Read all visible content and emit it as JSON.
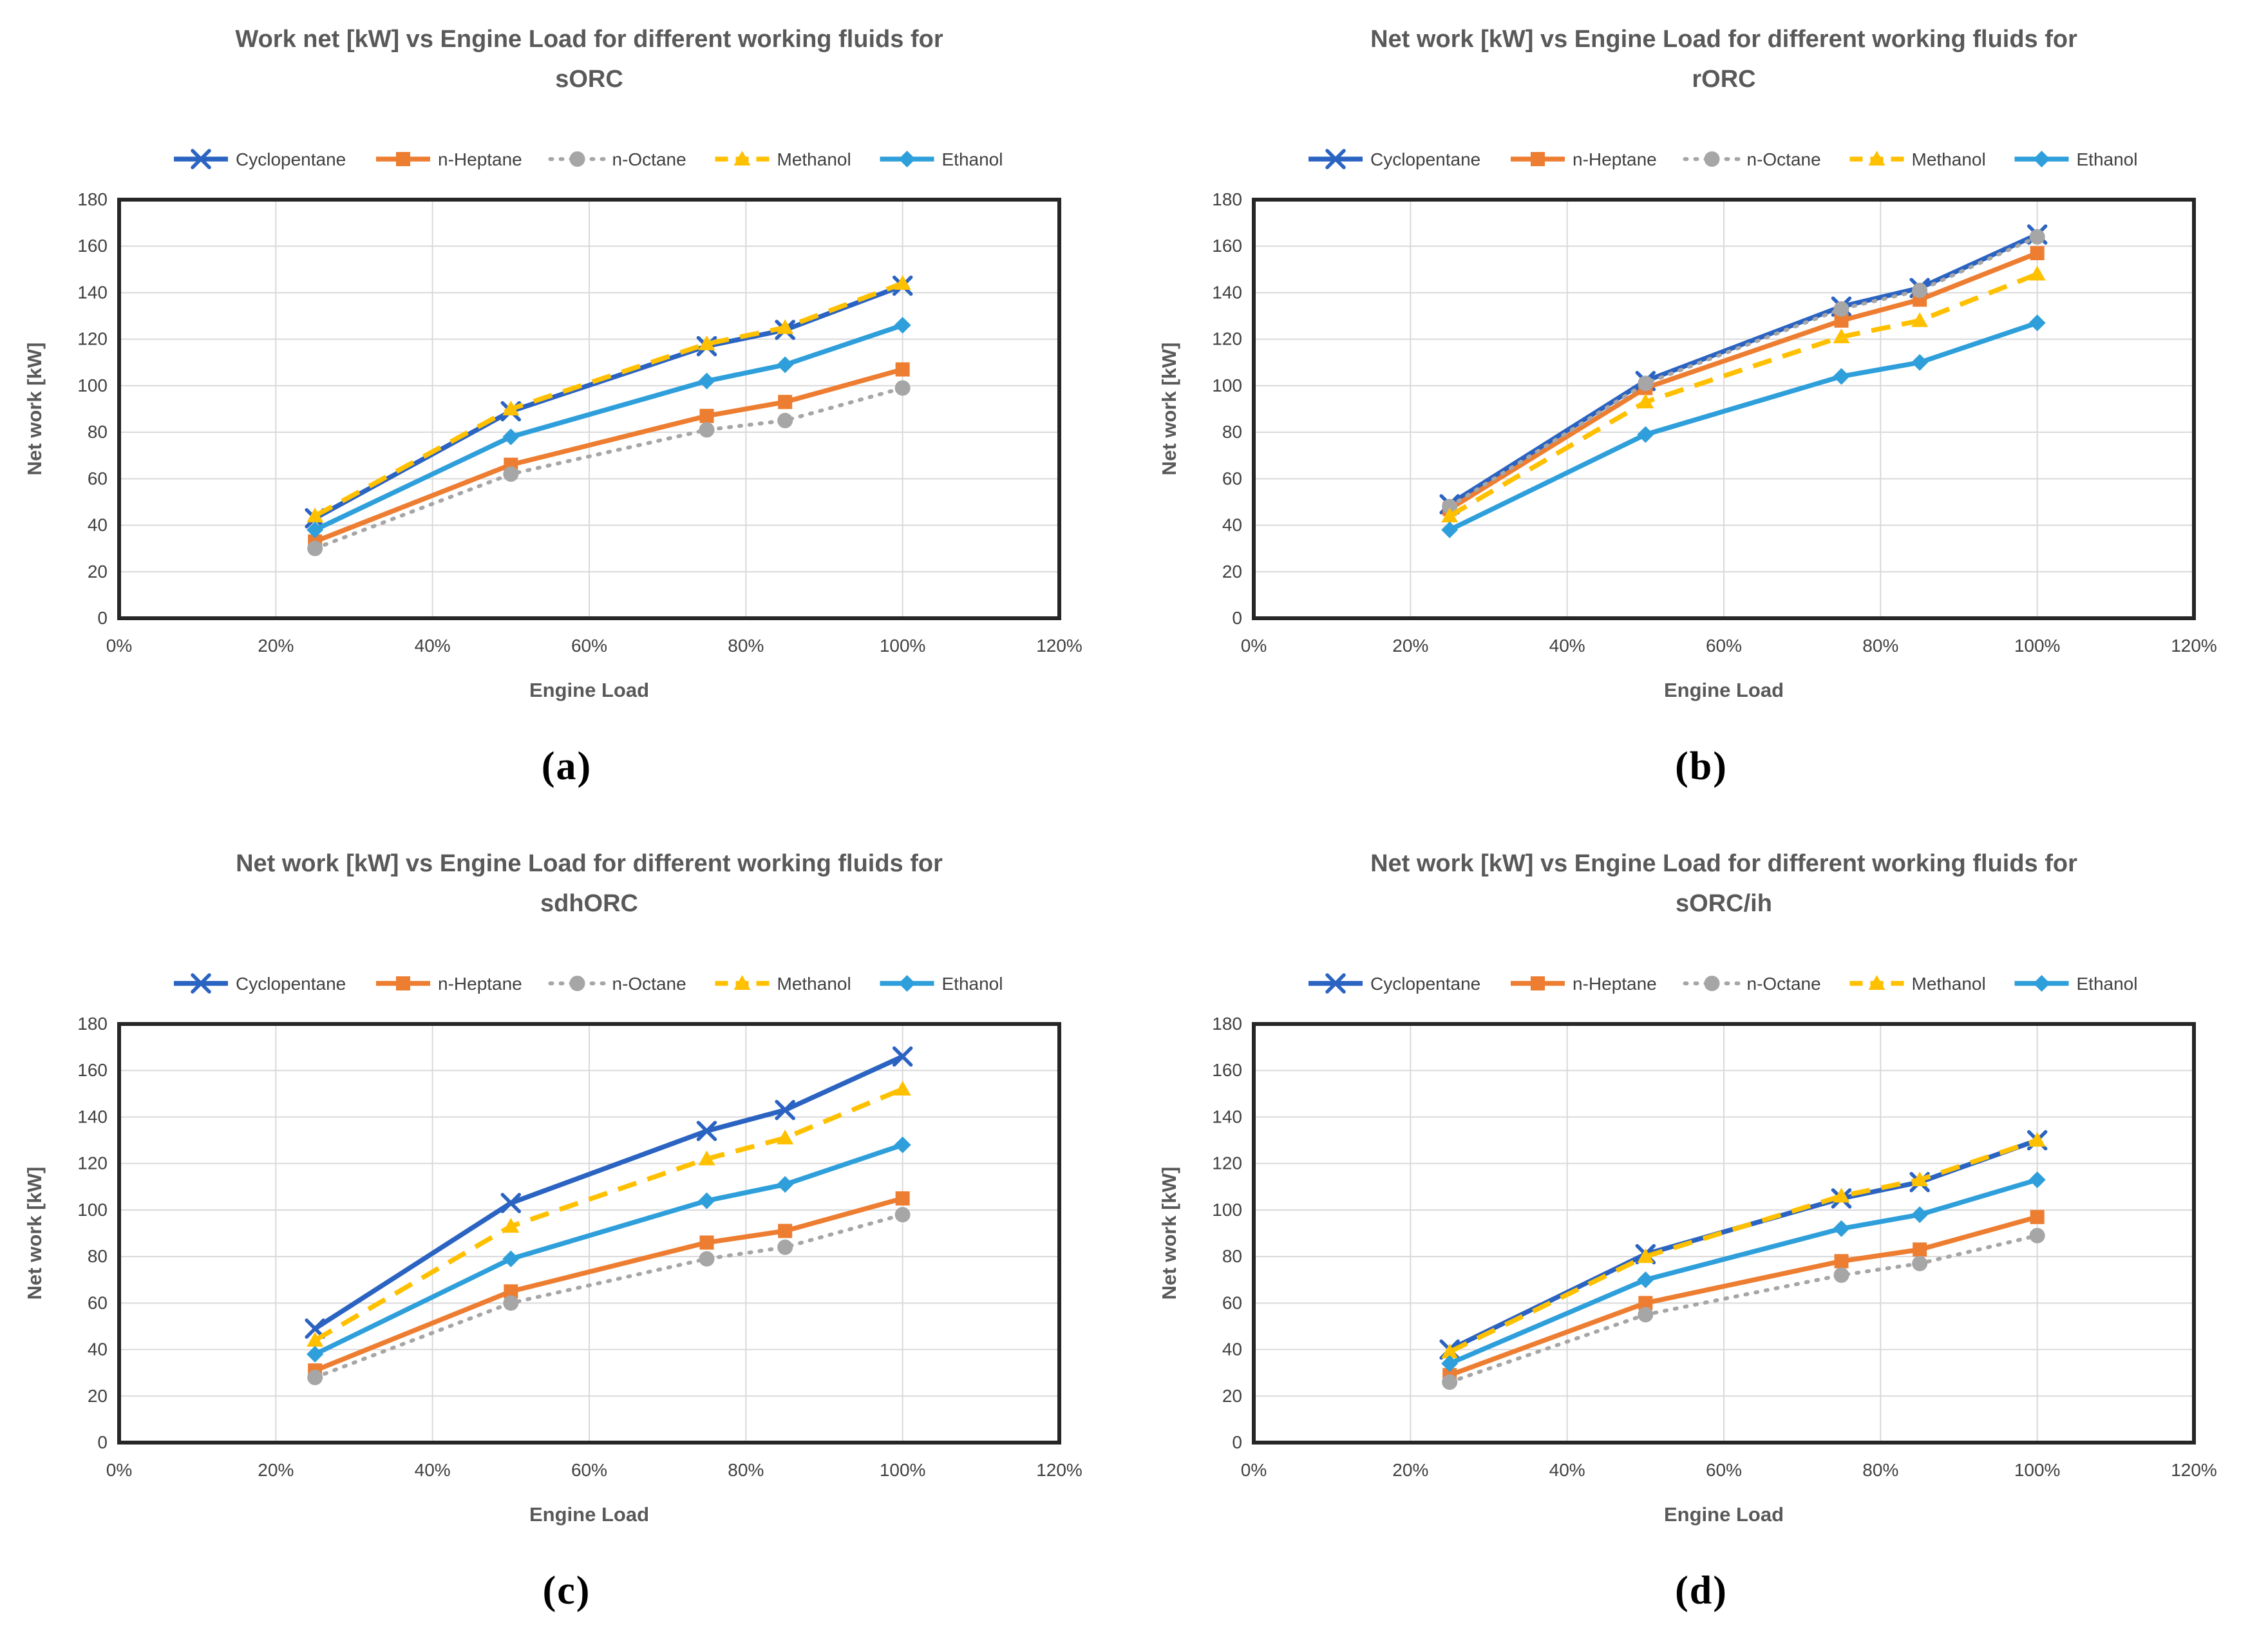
{
  "figure": {
    "background": "#ffffff",
    "grid_color": "#d9d9d9",
    "border_color": "#262626",
    "title_color": "#595959",
    "tick_color": "#404040"
  },
  "chart_data": [
    {
      "type": "line",
      "panel_label": "(a)",
      "title_lines": [
        "Work net [kW] vs Engine Load for different working fluids for",
        "sORC"
      ],
      "title": "Work net [kW] vs Engine Load for different working fluids for sORC",
      "xlabel": "Engine Load",
      "ylabel": "Net work [kW]",
      "x_percent": [
        25,
        50,
        75,
        85,
        100
      ],
      "xlim": [
        0,
        120
      ],
      "xticks": [
        "0%",
        "20%",
        "40%",
        "60%",
        "80%",
        "100%",
        "120%"
      ],
      "xtick_percent": [
        0,
        20,
        40,
        60,
        80,
        100,
        120
      ],
      "ylim": [
        0,
        180
      ],
      "ytick_step": 20,
      "grid": true,
      "legend_position": "top",
      "series": [
        {
          "name": "Cyclopentane",
          "color": "#2A63C1",
          "line": "solid",
          "marker": "x",
          "values": [
            43,
            89,
            117,
            124,
            143
          ]
        },
        {
          "name": "n-Heptane",
          "color": "#ED7D31",
          "line": "solid",
          "marker": "square",
          "values": [
            33,
            66,
            87,
            93,
            107
          ]
        },
        {
          "name": "n-Octane",
          "color": "#A6A6A6",
          "line": "dotted",
          "marker": "circle",
          "values": [
            30,
            62,
            81,
            85,
            99
          ]
        },
        {
          "name": "Methanol",
          "color": "#FFC000",
          "line": "dashed",
          "marker": "triangle",
          "values": [
            44,
            90,
            118,
            125,
            144
          ]
        },
        {
          "name": "Ethanol",
          "color": "#2E9FDA",
          "line": "solid",
          "marker": "diamond",
          "values": [
            38,
            78,
            102,
            109,
            126
          ]
        }
      ]
    },
    {
      "type": "line",
      "panel_label": "(b)",
      "title_lines": [
        "Net work [kW] vs Engine Load for different working fluids for",
        "rORC"
      ],
      "title": "Net work [kW] vs Engine Load for different working fluids for rORC",
      "xlabel": "Engine Load",
      "ylabel": "Net work [kW]",
      "x_percent": [
        25,
        50,
        75,
        85,
        100
      ],
      "xlim": [
        0,
        120
      ],
      "xticks": [
        "0%",
        "20%",
        "40%",
        "60%",
        "80%",
        "100%",
        "120%"
      ],
      "xtick_percent": [
        0,
        20,
        40,
        60,
        80,
        100,
        120
      ],
      "ylim": [
        0,
        180
      ],
      "ytick_step": 20,
      "grid": true,
      "legend_position": "top",
      "series": [
        {
          "name": "Cyclopentane",
          "color": "#2A63C1",
          "line": "solid",
          "marker": "x",
          "values": [
            49,
            102,
            134,
            142,
            165
          ]
        },
        {
          "name": "n-Heptane",
          "color": "#ED7D31",
          "line": "solid",
          "marker": "square",
          "values": [
            47,
            99,
            128,
            137,
            157
          ]
        },
        {
          "name": "n-Octane",
          "color": "#A6A6A6",
          "line": "dotted",
          "marker": "circle",
          "values": [
            48,
            101,
            133,
            141,
            164
          ]
        },
        {
          "name": "Methanol",
          "color": "#FFC000",
          "line": "dashed",
          "marker": "triangle",
          "values": [
            44,
            93,
            121,
            128,
            148
          ]
        },
        {
          "name": "Ethanol",
          "color": "#2E9FDA",
          "line": "solid",
          "marker": "diamond",
          "values": [
            38,
            79,
            104,
            110,
            127
          ]
        }
      ]
    },
    {
      "type": "line",
      "panel_label": "(c)",
      "title_lines": [
        "Net work [kW] vs Engine Load for different working fluids for",
        "sdhORC"
      ],
      "title": "Net work [kW] vs Engine Load for different working fluids for sdhORC",
      "xlabel": "Engine Load",
      "ylabel": "Net work [kW]",
      "x_percent": [
        25,
        50,
        75,
        85,
        100
      ],
      "xlim": [
        0,
        120
      ],
      "xticks": [
        "0%",
        "20%",
        "40%",
        "60%",
        "80%",
        "100%",
        "120%"
      ],
      "xtick_percent": [
        0,
        20,
        40,
        60,
        80,
        100,
        120
      ],
      "ylim": [
        0,
        180
      ],
      "ytick_step": 20,
      "grid": true,
      "legend_position": "top",
      "series": [
        {
          "name": "Cyclopentane",
          "color": "#2A63C1",
          "line": "solid",
          "marker": "x",
          "values": [
            49,
            103,
            134,
            143,
            166
          ]
        },
        {
          "name": "n-Heptane",
          "color": "#ED7D31",
          "line": "solid",
          "marker": "square",
          "values": [
            31,
            65,
            86,
            91,
            105
          ]
        },
        {
          "name": "n-Octane",
          "color": "#A6A6A6",
          "line": "dotted",
          "marker": "circle",
          "values": [
            28,
            60,
            79,
            84,
            98
          ]
        },
        {
          "name": "Methanol",
          "color": "#FFC000",
          "line": "dashed",
          "marker": "triangle",
          "values": [
            44,
            93,
            122,
            131,
            152
          ]
        },
        {
          "name": "Ethanol",
          "color": "#2E9FDA",
          "line": "solid",
          "marker": "diamond",
          "values": [
            38,
            79,
            104,
            111,
            128
          ]
        }
      ]
    },
    {
      "type": "line",
      "panel_label": "(d)",
      "title_lines": [
        "Net work [kW] vs Engine Load for different working fluids for",
        "sORC/ih"
      ],
      "title": "Net work [kW] vs Engine Load for different working fluids for sORC/ih",
      "xlabel": "Engine Load",
      "ylabel": "Net work [kW]",
      "x_percent": [
        25,
        50,
        75,
        85,
        100
      ],
      "xlim": [
        0,
        120
      ],
      "xticks": [
        "0%",
        "20%",
        "40%",
        "60%",
        "80%",
        "100%",
        "120%"
      ],
      "xtick_percent": [
        0,
        20,
        40,
        60,
        80,
        100,
        120
      ],
      "ylim": [
        0,
        180
      ],
      "ytick_step": 20,
      "grid": true,
      "legend_position": "top",
      "series": [
        {
          "name": "Cyclopentane",
          "color": "#2A63C1",
          "line": "solid",
          "marker": "x",
          "values": [
            40,
            81,
            105,
            112,
            130
          ]
        },
        {
          "name": "n-Heptane",
          "color": "#ED7D31",
          "line": "solid",
          "marker": "square",
          "values": [
            29,
            60,
            78,
            83,
            97
          ]
        },
        {
          "name": "n-Octane",
          "color": "#A6A6A6",
          "line": "dotted",
          "marker": "circle",
          "values": [
            26,
            55,
            72,
            77,
            89
          ]
        },
        {
          "name": "Methanol",
          "color": "#FFC000",
          "line": "dashed",
          "marker": "triangle",
          "values": [
            39,
            80,
            106,
            113,
            130
          ]
        },
        {
          "name": "Ethanol",
          "color": "#2E9FDA",
          "line": "solid",
          "marker": "diamond",
          "values": [
            34,
            70,
            92,
            98,
            113
          ]
        }
      ]
    }
  ]
}
